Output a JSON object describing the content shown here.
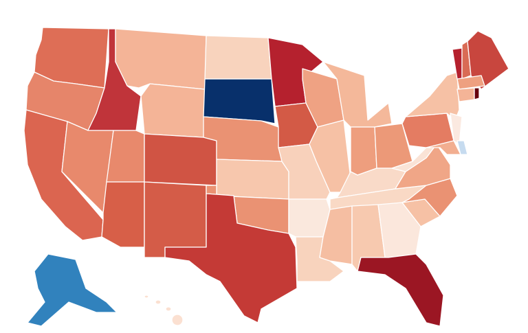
{
  "map": {
    "type": "choropleth",
    "region": "United States",
    "state_fills": {
      "WA": "#de6e56",
      "OR": "#e6856a",
      "CA": "#db6550",
      "ID": "#c0343a",
      "NV": "#e8896c",
      "MT": "#f4b497",
      "WY": "#f4b497",
      "UT": "#e8896c",
      "AZ": "#d75f48",
      "CO": "#d05444",
      "NM": "#d45c48",
      "ND": "#f8d3bd",
      "SD": "#08306b",
      "NE": "#ea9273",
      "KS": "#f7c7ad",
      "OK": "#ea9273",
      "TX": "#c43a36",
      "MN": "#b5212e",
      "IA": "#d35a46",
      "MO": "#f8d1bb",
      "AR": "#fae8dd",
      "LA": "#f8d3bd",
      "WI": "#efa283",
      "IL": "#f6c1a5",
      "MI": "#f4b89a",
      "IN": "#ee9e7e",
      "OH": "#ec9978",
      "KY": "#f9dac8",
      "TN": "#f9d9c5",
      "MS": "#f5bea2",
      "AL": "#f7c9af",
      "GA": "#fbe7dc",
      "FL": "#9b1623",
      "SC": "#f6c1a5",
      "NC": "#ea9273",
      "VA": "#f0a687",
      "WV": "#fae3d6",
      "PA": "#e47c62",
      "NY": "#f6c1a5",
      "VT": "#b5212e",
      "NH": "#d96b55",
      "ME": "#c8463e",
      "MA": "#eea080",
      "CT": "#f4b497",
      "RI": "#67000d",
      "NJ": "#fbe9e0",
      "DE": "#c6dbef",
      "MD": "#f2ae90",
      "AK": "#3182bd",
      "HI": "#fbe0d1"
    }
  }
}
